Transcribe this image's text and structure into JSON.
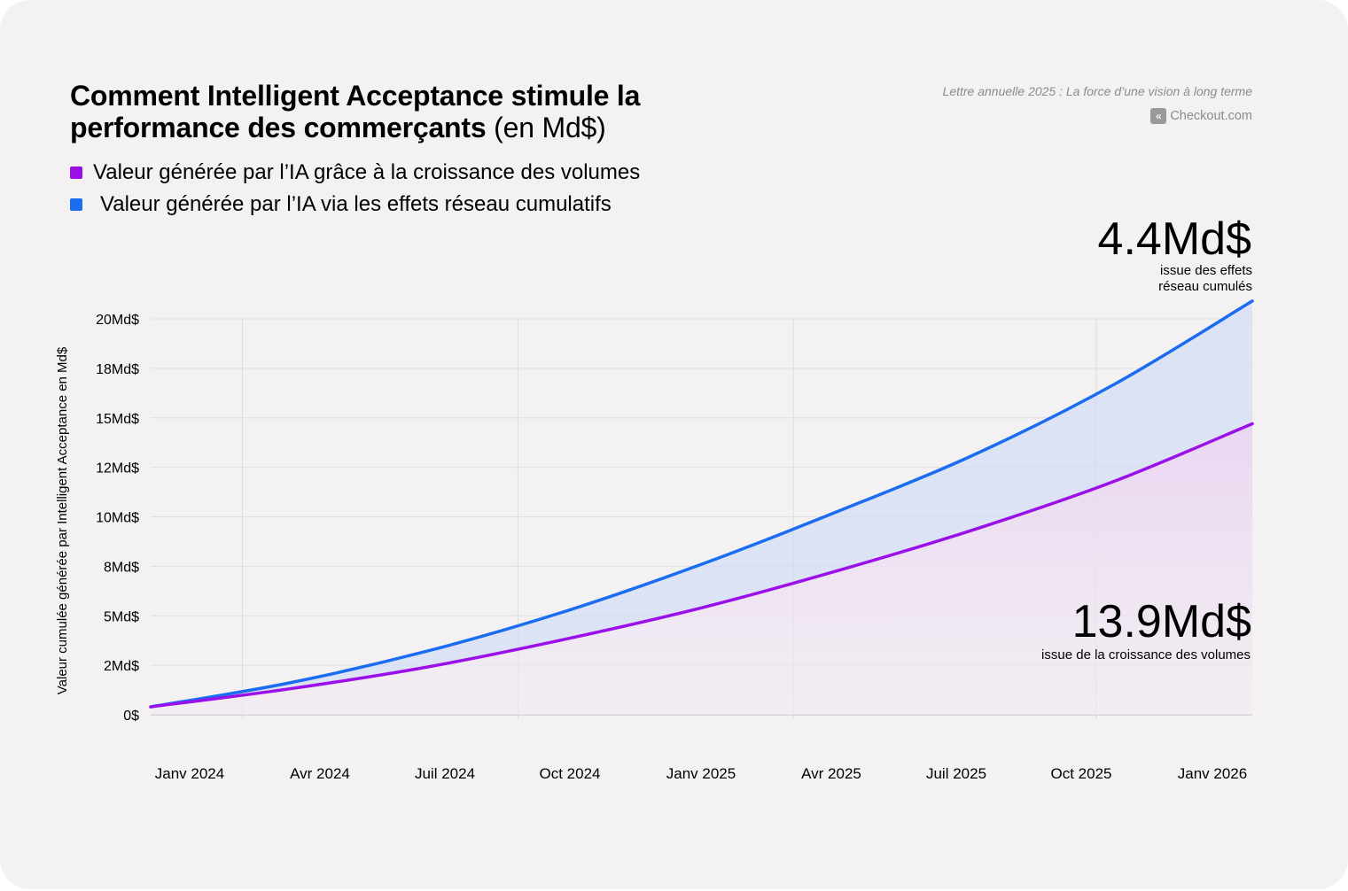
{
  "header": {
    "title_main": "Comment Intelligent Acceptance stimule la performance des commerçants",
    "title_unit": " (en Md$)",
    "source": "Lettre annuelle 2025 : La force d’une vision à long terme",
    "brand": "Checkout.com",
    "brand_icon": "checkout-logo-icon"
  },
  "legend": {
    "items": [
      {
        "label": "Valeur générée par l’IA grâce à la croissance des volumes",
        "color": "#9b10e8"
      },
      {
        "label": "Valeur générée par l’IA via les effets réseau cumulatifs",
        "color": "#1a6cf0"
      }
    ]
  },
  "chart_data": {
    "type": "area",
    "title": "Comment Intelligent Acceptance stimule la performance des commerçants (en Md$)",
    "ylabel": "Valeur cumulée générée par Intelligent Acceptance en Md$",
    "xlabel": "",
    "ylim": [
      0,
      20
    ],
    "y_ticks": [
      0,
      2.5,
      5,
      7.5,
      10,
      12.5,
      15,
      17.5,
      20
    ],
    "y_tick_labels": [
      "0$",
      "2Md$",
      "5Md$",
      "8Md$",
      "10Md$",
      "12Md$",
      "15Md$",
      "18Md$",
      "20Md$"
    ],
    "x_ticks": [
      0,
      3,
      6,
      9,
      12,
      15,
      18,
      21,
      24
    ],
    "x_tick_labels": [
      "Janv 2024",
      "Avr 2024",
      "Juil 2024",
      "Oct 2024",
      "Janv 2025",
      "Avr 2025",
      "Juil 2025",
      "Oct 2025",
      "Janv 2026"
    ],
    "x_range": [
      0,
      24
    ],
    "x_vgrid": [
      2,
      8,
      14,
      20.6
    ],
    "grid": true,
    "series": [
      {
        "name": "Valeur générée par l’IA via les effets réseau cumulatifs",
        "color": "#1a6cf0",
        "x": [
          0,
          3,
          6,
          9,
          12,
          15,
          18,
          21,
          24
        ],
        "values": [
          0.4,
          1.6,
          3.2,
          5.2,
          7.6,
          10.3,
          13.2,
          16.7,
          20.9
        ]
      },
      {
        "name": "Valeur générée par l’IA grâce à la croissance des volumes",
        "color": "#9b10e8",
        "x": [
          0,
          3,
          6,
          9,
          12,
          15,
          18,
          21,
          24
        ],
        "values": [
          0.4,
          1.3,
          2.4,
          3.8,
          5.4,
          7.3,
          9.4,
          11.8,
          14.7
        ]
      }
    ],
    "annotations": [
      {
        "value": "4.4Md$",
        "text": [
          "issue des effets",
          "réseau cumulés"
        ]
      },
      {
        "value": "13.9Md$",
        "text": [
          "issue de la croissance des volumes"
        ]
      }
    ]
  }
}
